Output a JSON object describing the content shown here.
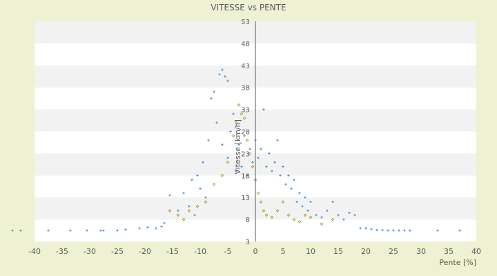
{
  "chart_data": {
    "type": "scatter",
    "title": "VITESSE vs PENTE",
    "xlabel": "Pente [%]",
    "ylabel": "Vitesse [km/h]",
    "xlim": [
      -40,
      40
    ],
    "ylim": [
      3,
      53
    ],
    "x_ticks": [
      "-40",
      "-35",
      "-30",
      "-25",
      "-20",
      "-15",
      "-10",
      "-5",
      "0",
      "5",
      "10",
      "15",
      "20",
      "25",
      "30",
      "35",
      "40"
    ],
    "y_ticks": [
      "3",
      "8",
      "13",
      "18",
      "23",
      "28",
      "33",
      "38",
      "43",
      "48",
      "53"
    ],
    "grid": "alternating horizontal bands",
    "legend": "none",
    "series": [
      {
        "color": "#3c8fd6",
        "marker": "plus",
        "points": [
          [
            -44,
            5.5
          ],
          [
            -42.5,
            5.5
          ],
          [
            -37.5,
            5.5
          ],
          [
            -33.5,
            5.5
          ],
          [
            -30.5,
            5.5
          ],
          [
            -28,
            5.5
          ],
          [
            -27.5,
            5.5
          ],
          [
            -25,
            5.5
          ],
          [
            -23.5,
            5.7
          ],
          [
            -21,
            6
          ],
          [
            -19.5,
            6.2
          ],
          [
            -18,
            6
          ],
          [
            -17,
            6.4
          ],
          [
            -16.5,
            7.2
          ],
          [
            -15.5,
            13.5
          ],
          [
            -14,
            10
          ],
          [
            -13,
            14
          ],
          [
            -12,
            11
          ],
          [
            -11.5,
            17
          ],
          [
            -11,
            9
          ],
          [
            -10.5,
            18
          ],
          [
            -10,
            15
          ],
          [
            -9.5,
            21
          ],
          [
            -9,
            13
          ],
          [
            -8.5,
            26
          ],
          [
            -8,
            35.5
          ],
          [
            -7.5,
            37
          ],
          [
            -7,
            30
          ],
          [
            -6.5,
            41
          ],
          [
            -6,
            42
          ],
          [
            -6,
            25
          ],
          [
            -5.5,
            40.5
          ],
          [
            -5,
            39.5
          ],
          [
            -5,
            22
          ],
          [
            -4.5,
            28
          ],
          [
            -4,
            32
          ],
          [
            -3.5,
            19
          ],
          [
            -3,
            25
          ],
          [
            -2.5,
            20
          ],
          [
            -2,
            27
          ],
          [
            -1.5,
            18
          ],
          [
            -1,
            24
          ],
          [
            -0.5,
            21
          ],
          [
            0,
            26
          ],
          [
            0.5,
            22
          ],
          [
            1,
            24
          ],
          [
            1.5,
            33
          ],
          [
            2,
            20
          ],
          [
            2.5,
            23
          ],
          [
            3,
            19
          ],
          [
            3.5,
            21
          ],
          [
            4,
            26
          ],
          [
            4.5,
            18
          ],
          [
            5,
            20
          ],
          [
            5.5,
            16
          ],
          [
            6,
            18
          ],
          [
            6.5,
            15
          ],
          [
            7,
            17
          ],
          [
            7.5,
            12
          ],
          [
            8,
            14
          ],
          [
            8.5,
            11
          ],
          [
            9,
            13
          ],
          [
            9.5,
            10
          ],
          [
            10,
            12
          ],
          [
            11,
            9
          ],
          [
            12,
            8.5
          ],
          [
            13,
            10
          ],
          [
            14,
            12
          ],
          [
            15,
            9
          ],
          [
            16,
            8
          ],
          [
            17,
            9.5
          ],
          [
            18,
            9
          ],
          [
            19,
            6
          ],
          [
            20,
            6
          ],
          [
            21,
            5.8
          ],
          [
            22,
            5.6
          ],
          [
            23,
            5.6
          ],
          [
            24,
            5.5
          ],
          [
            25,
            5.5
          ],
          [
            26,
            5.5
          ],
          [
            27,
            5.5
          ],
          [
            28,
            5.5
          ],
          [
            33,
            5.5
          ],
          [
            37,
            5.5
          ]
        ]
      },
      {
        "color": "#9a9a1e",
        "marker": "diamond",
        "points": [
          [
            -15.5,
            10
          ],
          [
            -14,
            9
          ],
          [
            -13,
            8
          ],
          [
            -12,
            10
          ],
          [
            -10.5,
            11
          ],
          [
            -9,
            12
          ],
          [
            -7.5,
            16
          ],
          [
            -6,
            18
          ],
          [
            -5,
            21
          ],
          [
            -4,
            27
          ],
          [
            -3.5,
            30
          ],
          [
            -3,
            34
          ],
          [
            -2.5,
            32
          ],
          [
            -2,
            31
          ],
          [
            -1.5,
            26
          ],
          [
            -1,
            23
          ],
          [
            -0.5,
            20
          ],
          [
            0,
            17
          ],
          [
            0.5,
            14
          ],
          [
            1,
            12
          ],
          [
            1.5,
            10
          ],
          [
            2,
            9
          ],
          [
            3,
            8.5
          ],
          [
            4,
            10
          ],
          [
            5,
            12
          ],
          [
            6,
            9
          ],
          [
            7,
            8
          ],
          [
            8,
            7.5
          ],
          [
            9,
            9
          ],
          [
            10,
            8.5
          ],
          [
            12,
            7
          ],
          [
            14,
            8
          ]
        ]
      }
    ]
  }
}
